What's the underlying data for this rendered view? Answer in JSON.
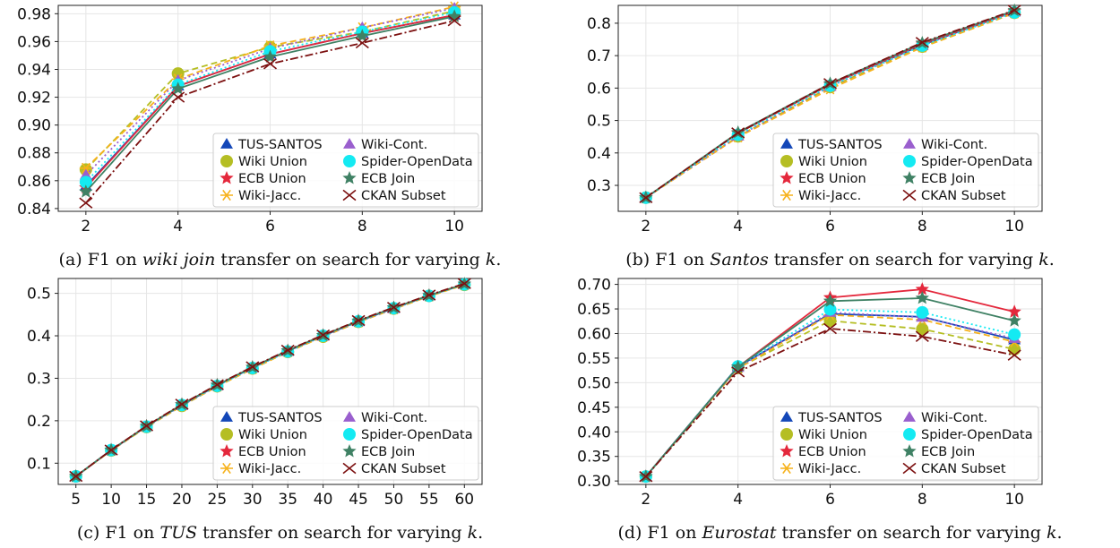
{
  "series_styles": [
    {
      "name": "TUS-SANTOS",
      "color": "#1347b8",
      "marker": "triangle",
      "dash": ""
    },
    {
      "name": "Wiki Union",
      "color": "#b5be23",
      "marker": "circle",
      "dash": "7 4"
    },
    {
      "name": "ECB Union",
      "color": "#e4283c",
      "marker": "star",
      "dash": ""
    },
    {
      "name": "Wiki-Jacc.",
      "color": "#f6b21c",
      "marker": "asterisk",
      "dash": "7 4"
    },
    {
      "name": "Wiki-Cont.",
      "color": "#9a5fce",
      "marker": "triangle",
      "dash": "2 3"
    },
    {
      "name": "Spider-OpenData",
      "color": "#14eaf2",
      "marker": "circle",
      "dash": "2 3"
    },
    {
      "name": "ECB Join",
      "color": "#3f8164",
      "marker": "star",
      "dash": ""
    },
    {
      "name": "CKAN Subset",
      "color": "#7c1010",
      "marker": "x",
      "dash": "9 3 2 3"
    }
  ],
  "chart_data": [
    {
      "type": "line",
      "caption": {
        "prefix": "(a) F1 on ",
        "italic": "wiki join",
        "mid": " transfer on search for varying ",
        "k": "k",
        "suffix": "."
      },
      "x": [
        2,
        4,
        6,
        8,
        10
      ],
      "xlim": [
        1.4,
        10.6
      ],
      "ylim": [
        0.838,
        0.986
      ],
      "xticks": [
        "2",
        "4",
        "6",
        "8",
        "10"
      ],
      "yticks": [
        "0.84",
        "0.86",
        "0.88",
        "0.90",
        "0.92",
        "0.94",
        "0.96",
        "0.98"
      ],
      "grid": true,
      "legend_placement": "lower-right",
      "series": [
        {
          "name": "TUS-SANTOS",
          "values": [
            0.856,
            0.928,
            0.951,
            0.966,
            0.979
          ]
        },
        {
          "name": "Wiki Union",
          "values": [
            0.868,
            0.937,
            0.956,
            0.967,
            0.982
          ]
        },
        {
          "name": "ECB Union",
          "values": [
            0.855,
            0.928,
            0.951,
            0.966,
            0.979
          ]
        },
        {
          "name": "Wiki-Jacc.",
          "values": [
            0.869,
            0.933,
            0.957,
            0.97,
            0.985
          ]
        },
        {
          "name": "Wiki-Cont.",
          "values": [
            0.864,
            0.932,
            0.955,
            0.97,
            0.984
          ]
        },
        {
          "name": "Spider-OpenData",
          "values": [
            0.859,
            0.929,
            0.953,
            0.967,
            0.981
          ]
        },
        {
          "name": "ECB Join",
          "values": [
            0.852,
            0.926,
            0.949,
            0.964,
            0.978
          ]
        },
        {
          "name": "CKAN Subset",
          "values": [
            0.844,
            0.92,
            0.944,
            0.959,
            0.975
          ]
        }
      ]
    },
    {
      "type": "line",
      "caption": {
        "prefix": "(b) F1 on ",
        "italic": "Santos",
        "mid": " transfer on search for varying ",
        "k": "k",
        "suffix": "."
      },
      "x": [
        2,
        4,
        6,
        8,
        10
      ],
      "xlim": [
        1.4,
        10.6
      ],
      "ylim": [
        0.22,
        0.855
      ],
      "xticks": [
        "2",
        "4",
        "6",
        "8",
        "10"
      ],
      "yticks": [
        "0.3",
        "0.4",
        "0.5",
        "0.6",
        "0.7",
        "0.8"
      ],
      "grid": true,
      "legend_placement": "lower-right",
      "series": [
        {
          "name": "TUS-SANTOS",
          "values": [
            0.262,
            0.461,
            0.611,
            0.733,
            0.836
          ]
        },
        {
          "name": "Wiki Union",
          "values": [
            0.262,
            0.451,
            0.603,
            0.728,
            0.832
          ]
        },
        {
          "name": "ECB Union",
          "values": [
            0.262,
            0.461,
            0.611,
            0.736,
            0.836
          ]
        },
        {
          "name": "Wiki-Jacc.",
          "values": [
            0.262,
            0.449,
            0.597,
            0.726,
            0.831
          ]
        },
        {
          "name": "Wiki-Cont.",
          "values": [
            0.262,
            0.452,
            0.605,
            0.731,
            0.834
          ]
        },
        {
          "name": "Spider-OpenData",
          "values": [
            0.262,
            0.456,
            0.607,
            0.731,
            0.833
          ]
        },
        {
          "name": "ECB Join",
          "values": [
            0.262,
            0.463,
            0.614,
            0.739,
            0.839
          ]
        },
        {
          "name": "CKAN Subset",
          "values": [
            0.262,
            0.462,
            0.614,
            0.741,
            0.84
          ]
        }
      ]
    },
    {
      "type": "line",
      "caption": {
        "prefix": "(c) F1 on ",
        "italic": "TUS",
        "mid": " transfer on search for varying ",
        "k": "k",
        "suffix": "."
      },
      "x": [
        5,
        10,
        15,
        20,
        25,
        30,
        35,
        40,
        45,
        50,
        55,
        60
      ],
      "xlim": [
        2.5,
        62.5
      ],
      "ylim": [
        0.05,
        0.535
      ],
      "xticks": [
        "5",
        "10",
        "15",
        "20",
        "25",
        "30",
        "35",
        "40",
        "45",
        "50",
        "55",
        "60"
      ],
      "yticks": [
        "0.1",
        "0.2",
        "0.3",
        "0.4",
        "0.5"
      ],
      "grid": true,
      "legend_placement": "lower-right",
      "series": [
        {
          "name": "TUS-SANTOS",
          "values": [
            0.069,
            0.131,
            0.187,
            0.237,
            0.283,
            0.325,
            0.364,
            0.4,
            0.434,
            0.465,
            0.495,
            0.521
          ]
        },
        {
          "name": "Wiki Union",
          "values": [
            0.069,
            0.13,
            0.185,
            0.235,
            0.281,
            0.323,
            0.362,
            0.398,
            0.433,
            0.464,
            0.494,
            0.52
          ]
        },
        {
          "name": "ECB Union",
          "values": [
            0.069,
            0.131,
            0.187,
            0.238,
            0.284,
            0.326,
            0.365,
            0.401,
            0.435,
            0.466,
            0.495,
            0.522
          ]
        },
        {
          "name": "Wiki-Jacc.",
          "values": [
            0.069,
            0.13,
            0.185,
            0.235,
            0.281,
            0.322,
            0.362,
            0.398,
            0.432,
            0.463,
            0.493,
            0.52
          ]
        },
        {
          "name": "Wiki-Cont.",
          "values": [
            0.069,
            0.13,
            0.186,
            0.236,
            0.282,
            0.324,
            0.363,
            0.399,
            0.433,
            0.464,
            0.494,
            0.521
          ]
        },
        {
          "name": "Spider-OpenData",
          "values": [
            0.069,
            0.131,
            0.186,
            0.237,
            0.282,
            0.324,
            0.363,
            0.4,
            0.434,
            0.465,
            0.494,
            0.521
          ]
        },
        {
          "name": "ECB Join",
          "values": [
            0.069,
            0.131,
            0.187,
            0.238,
            0.284,
            0.326,
            0.365,
            0.401,
            0.435,
            0.466,
            0.495,
            0.522
          ]
        },
        {
          "name": "CKAN Subset",
          "values": [
            0.069,
            0.131,
            0.188,
            0.239,
            0.285,
            0.327,
            0.366,
            0.402,
            0.436,
            0.467,
            0.496,
            0.523
          ]
        }
      ]
    },
    {
      "type": "line",
      "caption": {
        "prefix": "(d) F1 on ",
        "italic": "Eurostat",
        "mid": " transfer on search for varying ",
        "k": "k",
        "suffix": "."
      },
      "x": [
        2,
        4,
        6,
        8,
        10
      ],
      "xlim": [
        1.4,
        10.6
      ],
      "ylim": [
        0.293,
        0.712
      ],
      "xticks": [
        "2",
        "4",
        "6",
        "8",
        "10"
      ],
      "yticks": [
        "0.30",
        "0.35",
        "0.40",
        "0.45",
        "0.50",
        "0.55",
        "0.60",
        "0.65",
        "0.70"
      ],
      "grid": true,
      "legend_placement": "lower-right",
      "series": [
        {
          "name": "TUS-SANTOS",
          "values": [
            0.309,
            0.533,
            0.64,
            0.634,
            0.587
          ]
        },
        {
          "name": "Wiki Union",
          "values": [
            0.309,
            0.53,
            0.626,
            0.609,
            0.568
          ]
        },
        {
          "name": "ECB Union",
          "values": [
            0.309,
            0.532,
            0.673,
            0.69,
            0.644
          ]
        },
        {
          "name": "Wiki-Jacc.",
          "values": [
            0.309,
            0.529,
            0.638,
            0.628,
            0.583
          ]
        },
        {
          "name": "Wiki-Cont.",
          "values": [
            0.309,
            0.531,
            0.643,
            0.633,
            0.59
          ]
        },
        {
          "name": "Spider-OpenData",
          "values": [
            0.309,
            0.533,
            0.649,
            0.643,
            0.598
          ]
        },
        {
          "name": "ECB Join",
          "values": [
            0.309,
            0.532,
            0.666,
            0.672,
            0.626
          ]
        },
        {
          "name": "CKAN Subset",
          "values": [
            0.309,
            0.522,
            0.61,
            0.594,
            0.556
          ]
        }
      ]
    }
  ]
}
